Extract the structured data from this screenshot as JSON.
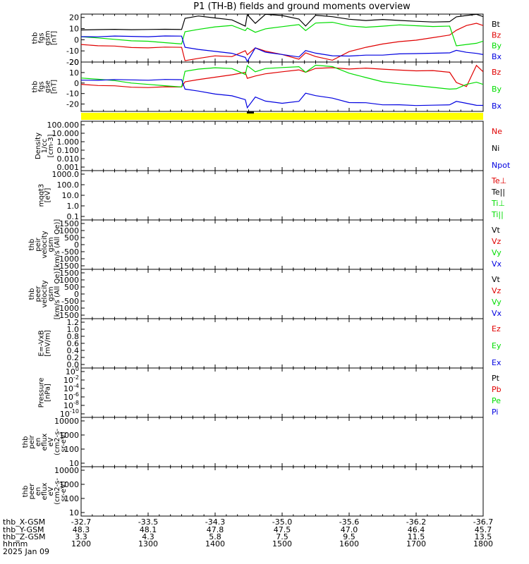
{
  "title": "P1 (TH-B) fields and ground moments overview",
  "colors": {
    "black": "#000000",
    "red": "#e00000",
    "green": "#00dd00",
    "blue": "#0000e0",
    "yellow": "#ffff00"
  },
  "chart_data": [
    {
      "type": "line",
      "id": "fgs-gsm",
      "ylabel": [
        "thb",
        "fgs",
        "gsm",
        "[nT]"
      ],
      "ylim": [
        -20,
        23
      ],
      "yticks": [
        "20",
        "10",
        "0",
        "-10",
        "-20"
      ],
      "yticks_values": [
        20,
        10,
        0,
        -10,
        -20
      ],
      "x": [
        1200,
        1225,
        1250,
        1275,
        1300,
        1325,
        1350,
        1355,
        1375,
        1400,
        1425,
        1445,
        1448,
        1460,
        1475,
        1500,
        1525,
        1535,
        1550,
        1575,
        1600,
        1625,
        1650,
        1675,
        1700,
        1725,
        1750,
        1760,
        1775,
        1790,
        1800
      ],
      "series": [
        {
          "name": "Bt",
          "color_key": "black",
          "values": [
            8,
            8.5,
            9,
            9,
            9.5,
            10,
            10,
            20,
            22,
            20,
            18,
            12,
            22,
            14,
            22,
            21,
            18,
            12,
            22,
            21,
            19,
            18,
            19,
            18,
            17,
            16,
            16,
            20,
            21,
            22,
            20
          ]
        },
        {
          "name": "Bz",
          "color_key": "red",
          "values": [
            -5,
            -6,
            -6,
            -7,
            -7,
            -6,
            -6,
            -18,
            -16,
            -14,
            -15,
            -10,
            -14,
            -8,
            -11,
            -14,
            -18,
            -12,
            -15,
            -18,
            -10,
            -6,
            -3,
            -1,
            0,
            2,
            4,
            8,
            12,
            14,
            12
          ]
        },
        {
          "name": "By",
          "color_key": "green",
          "values": [
            2,
            1,
            0,
            -1,
            -1,
            -2,
            -3,
            8,
            10,
            12,
            13,
            8,
            10,
            6,
            9,
            11,
            13,
            8,
            15,
            16,
            13,
            12,
            13,
            14,
            13,
            12,
            12,
            -6,
            -5,
            -4,
            -2
          ]
        },
        {
          "name": "Bx",
          "color_key": "blue",
          "values": [
            2,
            2,
            3,
            3,
            3,
            4,
            4,
            -6,
            -8,
            -10,
            -12,
            -16,
            -20,
            -8,
            -12,
            -14,
            -16,
            -10,
            -12,
            -14,
            -14,
            -13,
            -13,
            -12,
            -12,
            -12,
            -12,
            -10,
            -12,
            -13,
            -14
          ]
        }
      ]
    },
    {
      "type": "line",
      "id": "fgs-gse",
      "ylabel": [
        "thb",
        "fgs",
        "gse",
        "[nT]"
      ],
      "ylim": [
        -27,
        20
      ],
      "yticks": [
        "20",
        "10",
        "0",
        "-10",
        "-20"
      ],
      "yticks_values": [
        20,
        10,
        0,
        -10,
        -20
      ],
      "x": [
        1200,
        1225,
        1250,
        1275,
        1300,
        1325,
        1350,
        1355,
        1375,
        1400,
        1425,
        1445,
        1448,
        1460,
        1475,
        1500,
        1525,
        1535,
        1550,
        1575,
        1600,
        1625,
        1650,
        1675,
        1700,
        1725,
        1750,
        1760,
        1775,
        1790,
        1800
      ],
      "series": [
        {
          "name": "Bz",
          "color_key": "red",
          "values": [
            -2,
            -3,
            -3,
            -4,
            -4,
            -3,
            -3,
            2,
            4,
            6,
            8,
            10,
            4,
            6,
            8,
            10,
            12,
            10,
            14,
            15,
            14,
            15,
            14,
            13,
            12,
            12,
            10,
            0,
            -4,
            16,
            10
          ]
        },
        {
          "name": "By",
          "color_key": "green",
          "values": [
            4,
            3,
            2,
            0,
            -1,
            -2,
            -3,
            12,
            14,
            15,
            14,
            8,
            16,
            10,
            13,
            14,
            15,
            10,
            17,
            16,
            10,
            6,
            2,
            0,
            -2,
            -4,
            -6,
            -6,
            -2,
            0,
            -2
          ]
        },
        {
          "name": "Bx",
          "color_key": "blue",
          "values": [
            2,
            2,
            3,
            3,
            3,
            4,
            4,
            -5,
            -7,
            -10,
            -12,
            -16,
            -24,
            -14,
            -18,
            -20,
            -18,
            -10,
            -12,
            -14,
            -18,
            -18,
            -20,
            -20,
            -21,
            -21,
            -21,
            -18,
            -20,
            -22,
            -22
          ]
        }
      ]
    },
    {
      "type": "line",
      "id": "density",
      "ylabel": [
        "Density",
        "1/cc",
        "[cm-3]"
      ],
      "yscale": "log",
      "yticks": [
        "100.000",
        "10.000",
        "1.000",
        "0.100",
        "0.010",
        "0.001"
      ],
      "legend": [
        {
          "name": "Ne",
          "color_key": "red"
        },
        {
          "name": "Ni",
          "color_key": "black"
        },
        {
          "name": "Npot",
          "color_key": "blue"
        }
      ],
      "series": []
    },
    {
      "type": "line",
      "id": "temperature",
      "ylabel": [
        "mqqt3",
        "[eV]"
      ],
      "yscale": "log",
      "yticks": [
        "1000.0",
        "100.0",
        "10.0",
        "1.0",
        "0.1"
      ],
      "legend": [
        {
          "name": "Te⊥",
          "color_key": "red"
        },
        {
          "name": "Te||",
          "color_key": "black"
        },
        {
          "name": "Ti⊥",
          "color_key": "green"
        },
        {
          "name": "Ti||",
          "color_key": "green"
        }
      ],
      "series": []
    },
    {
      "type": "line",
      "id": "peir-velocity",
      "ylabel": [
        "thb",
        "peir",
        "velocity",
        "gsm",
        "[km/s (All Qe)]"
      ],
      "yticks": [
        "1500",
        "1000",
        "500",
        "0",
        "-500",
        "-1000",
        "-1500"
      ],
      "legend": [
        {
          "name": "Vt",
          "color_key": "black"
        },
        {
          "name": "Vz",
          "color_key": "red"
        },
        {
          "name": "Vy",
          "color_key": "green"
        },
        {
          "name": "Vx",
          "color_key": "blue"
        }
      ],
      "series": []
    },
    {
      "type": "line",
      "id": "peer-velocity",
      "ylabel": [
        "thb",
        "peer",
        "velocity",
        "gsm",
        "[km/s (All Qe)]"
      ],
      "yticks": [
        "1500",
        "1000",
        "500",
        "0",
        "-500",
        "-1000",
        "-1500"
      ],
      "legend": [
        {
          "name": "Vt",
          "color_key": "black"
        },
        {
          "name": "Vz",
          "color_key": "red"
        },
        {
          "name": "Vy",
          "color_key": "green"
        },
        {
          "name": "Vx",
          "color_key": "blue"
        }
      ],
      "series": []
    },
    {
      "type": "line",
      "id": "e-field",
      "ylabel": [
        "E=-VxB",
        "[mV/m]"
      ],
      "yticks": [
        "1.2",
        "1.0",
        "0.8",
        "0.6",
        "0.4",
        "0.2",
        "0.0"
      ],
      "legend": [
        {
          "name": "Ez",
          "color_key": "red"
        },
        {
          "name": "Ey",
          "color_key": "green"
        },
        {
          "name": "Ex",
          "color_key": "blue"
        }
      ],
      "series": []
    },
    {
      "type": "line",
      "id": "pressure",
      "ylabel": [
        "Pressure",
        "[nPa]"
      ],
      "yscale": "log",
      "yticks_mantissa": "10",
      "yticks_exponents": [
        "0",
        "-2",
        "-4",
        "-6",
        "-8",
        "-10"
      ],
      "legend": [
        {
          "name": "Pt",
          "color_key": "black"
        },
        {
          "name": "Pb",
          "color_key": "red"
        },
        {
          "name": "Pe",
          "color_key": "green"
        },
        {
          "name": "Pi",
          "color_key": "blue"
        }
      ],
      "series": []
    },
    {
      "type": "heatmap",
      "id": "peir-eflux",
      "ylabel": [
        "thb",
        "peir",
        "en",
        "eflux",
        "eV",
        "(cm2-s-",
        "sr-eV)"
      ],
      "yscale": "log",
      "yticks": [
        "10000",
        "1000",
        "100",
        "10"
      ]
    },
    {
      "type": "heatmap",
      "id": "peer-eflux",
      "ylabel": [
        "thb",
        "peer",
        "en",
        "eflux",
        "eV",
        "(cm2-s-",
        "sr-eV)"
      ],
      "yscale": "log",
      "yticks": [
        "10000",
        "1000",
        "100",
        "10"
      ]
    }
  ],
  "xaxis": {
    "rows": [
      {
        "label": "thb_X-GSM",
        "values": [
          "-32.7",
          "-33.5",
          "-34.3",
          "-35.0",
          "-35.6",
          "-36.2",
          "-36.7"
        ]
      },
      {
        "label": "thb_Y-GSM",
        "values": [
          "48.3",
          "48.1",
          "47.8",
          "47.5",
          "47.0",
          "46.4",
          "45.7"
        ]
      },
      {
        "label": "thb_Z-GSM",
        "values": [
          "3.3",
          "4.3",
          "5.8",
          "7.5",
          "9.5",
          "11.5",
          "13.5"
        ]
      },
      {
        "label": "hhmm",
        "values": [
          "1200",
          "1300",
          "1400",
          "1500",
          "1600",
          "1700",
          "1800"
        ]
      }
    ],
    "date": "2025 Jan 09",
    "x_range": [
      1200,
      1800
    ]
  }
}
